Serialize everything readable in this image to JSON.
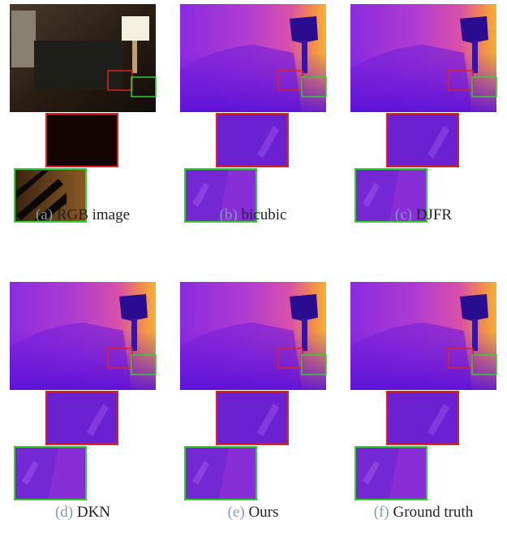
{
  "panels": [
    {
      "label": "(a)",
      "caption": "RGB image"
    },
    {
      "label": "(b)",
      "caption": "bicubic"
    },
    {
      "label": "(c)",
      "caption": "DJFR"
    },
    {
      "label": "(d)",
      "caption": "DKN"
    },
    {
      "label": "(e)",
      "caption": "Ours"
    },
    {
      "label": "(f)",
      "caption": "Ground truth"
    }
  ]
}
